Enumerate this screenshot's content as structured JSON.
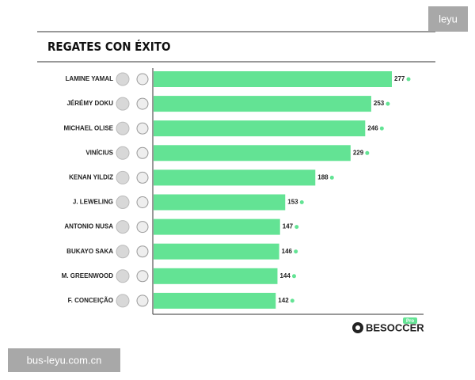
{
  "chart_data": {
    "type": "hbar",
    "title": "REGATES CON ÉXITO",
    "categories": [
      "LAMINE YAMAL",
      "JÉRÉMY DOKU",
      "MICHAEL OLISE",
      "VINÍCIUS",
      "KENAN YILDIZ",
      "J. LEWELING",
      "ANTONIO NUSA",
      "BUKAYO SAKA",
      "M. GREENWOOD",
      "F. CONCEIÇÃO"
    ],
    "values": [
      277,
      253,
      246,
      229,
      188,
      153,
      147,
      146,
      144,
      142
    ],
    "color": "#63e394"
  },
  "logo": {
    "name": "BESOCCER",
    "tag": "Pro"
  },
  "watermarks": {
    "top": "leyu",
    "bottom": "bus-leyu.com.cn"
  }
}
